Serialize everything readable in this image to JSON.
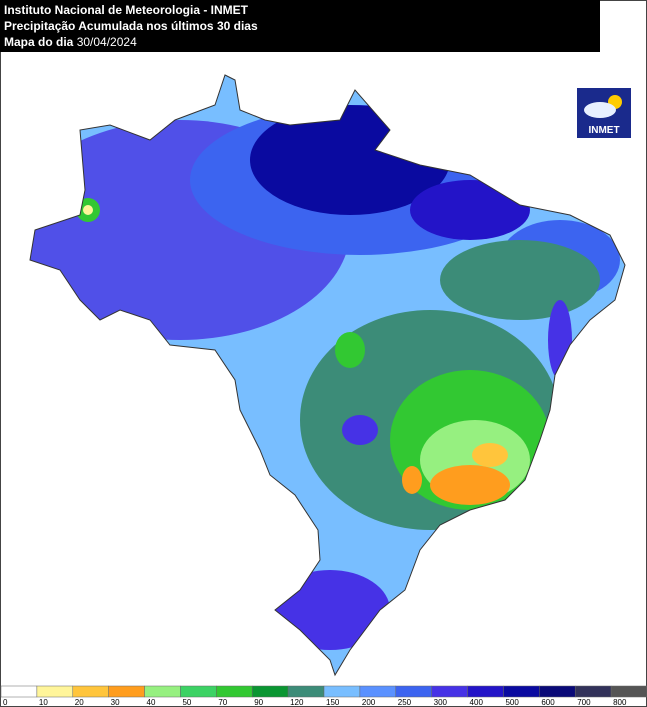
{
  "header": {
    "title": "Instituto Nacional de Meteorologia - INMET",
    "subtitle": "Precipitação Acumulada nos últimos 30 dias",
    "date_label": "Mapa do dia",
    "date": "30/04/2024"
  },
  "logo": {
    "text": "INMET"
  },
  "legend": {
    "values": [
      0,
      10,
      20,
      30,
      40,
      50,
      70,
      90,
      120,
      150,
      200,
      250,
      300,
      400,
      500,
      600,
      700,
      800
    ],
    "colors": [
      "#ffffff",
      "#fff59a",
      "#ffc53c",
      "#ff9d1e",
      "#96f080",
      "#3cd264",
      "#32c832",
      "#0a9632",
      "#3c8c78",
      "#78beff",
      "#5a91ff",
      "#3c64f0",
      "#4632e6",
      "#2314c8",
      "#0a0aa0",
      "#0a0a78",
      "#32325a",
      "#555555"
    ]
  }
}
